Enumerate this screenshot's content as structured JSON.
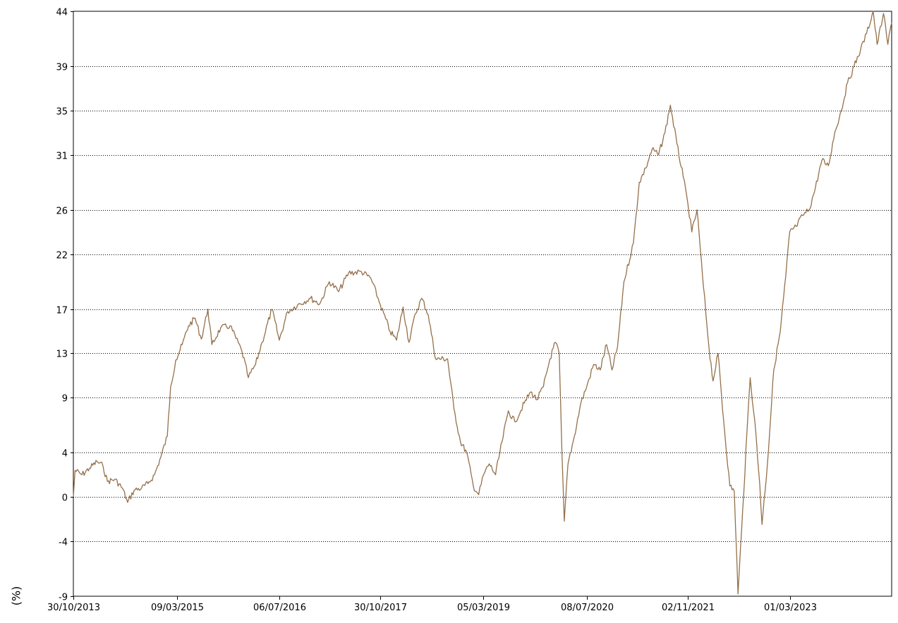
{
  "chart_data": {
    "type": "line",
    "title": "",
    "xlabel": "",
    "ylabel": "(%)",
    "grid": "horizontal dotted",
    "legend": "none",
    "line_color": "#94704a",
    "y_ticks": [
      "44",
      "39",
      "35",
      "31",
      "26",
      "22",
      "17",
      "13",
      "9",
      "4",
      "0",
      "-4",
      "-9"
    ],
    "x_ticks": [
      "30/10/2013",
      "09/03/2015",
      "06/07/2016",
      "30/10/2017",
      "05/03/2019",
      "08/07/2020",
      "02/11/2021",
      "01/03/2023"
    ],
    "ylim": [
      -9,
      44
    ],
    "xlim": [
      "2013-10-30",
      "2024-06-28"
    ],
    "series": [
      {
        "values": [
          [
            "2013-10-30",
            0.0
          ],
          [
            "2013-11-07",
            2.4
          ],
          [
            "2013-12-10",
            2.0
          ],
          [
            "2014-01-15",
            2.6
          ],
          [
            "2014-02-20",
            3.2
          ],
          [
            "2014-03-20",
            2.8
          ],
          [
            "2014-04-10",
            1.4
          ],
          [
            "2014-05-15",
            1.6
          ],
          [
            "2014-06-20",
            0.8
          ],
          [
            "2014-07-15",
            -0.5
          ],
          [
            "2014-08-15",
            0.6
          ],
          [
            "2014-09-20",
            0.8
          ],
          [
            "2014-10-20",
            1.2
          ],
          [
            "2014-11-20",
            2.0
          ],
          [
            "2014-12-20",
            3.6
          ],
          [
            "2015-01-20",
            5.5
          ],
          [
            "2015-02-05",
            10.0
          ],
          [
            "2015-03-01",
            12.4
          ],
          [
            "2015-04-01",
            13.8
          ],
          [
            "2015-05-01",
            15.5
          ],
          [
            "2015-06-01",
            16.2
          ],
          [
            "2015-07-01",
            14.3
          ],
          [
            "2015-08-01",
            17.0
          ],
          [
            "2015-08-20",
            13.8
          ],
          [
            "2015-10-01",
            15.3
          ],
          [
            "2015-11-15",
            15.5
          ],
          [
            "2016-01-10",
            13.2
          ],
          [
            "2016-02-10",
            10.8
          ],
          [
            "2016-03-15",
            12.0
          ],
          [
            "2016-04-15",
            14.0
          ],
          [
            "2016-06-01",
            17.0
          ],
          [
            "2016-07-06",
            14.2
          ],
          [
            "2016-08-15",
            16.8
          ],
          [
            "2016-10-01",
            17.4
          ],
          [
            "2016-12-01",
            18.0
          ],
          [
            "2017-01-15",
            17.5
          ],
          [
            "2017-03-01",
            19.5
          ],
          [
            "2017-04-15",
            18.6
          ],
          [
            "2017-06-01",
            20.3
          ],
          [
            "2017-08-01",
            20.4
          ],
          [
            "2017-09-15",
            19.8
          ],
          [
            "2017-10-30",
            17.4
          ],
          [
            "2017-12-15",
            15.0
          ],
          [
            "2018-01-15",
            14.2
          ],
          [
            "2018-02-15",
            17.2
          ],
          [
            "2018-03-15",
            14.0
          ],
          [
            "2018-04-15",
            16.6
          ],
          [
            "2018-05-15",
            18.0
          ],
          [
            "2018-06-15",
            16.5
          ],
          [
            "2018-07-20",
            12.5
          ],
          [
            "2018-09-15",
            12.5
          ],
          [
            "2018-10-15",
            8.0
          ],
          [
            "2018-11-15",
            5.0
          ],
          [
            "2018-12-15",
            4.0
          ],
          [
            "2019-01-15",
            1.0
          ],
          [
            "2019-02-10",
            0.2
          ],
          [
            "2019-03-05",
            2.0
          ],
          [
            "2019-04-01",
            3.0
          ],
          [
            "2019-05-01",
            2.0
          ],
          [
            "2019-06-01",
            5.0
          ],
          [
            "2019-07-01",
            7.8
          ],
          [
            "2019-08-01",
            6.8
          ],
          [
            "2019-09-15",
            8.5
          ],
          [
            "2019-10-15",
            9.5
          ],
          [
            "2019-11-15",
            8.8
          ],
          [
            "2019-12-15",
            10.0
          ],
          [
            "2020-01-15",
            12.5
          ],
          [
            "2020-02-10",
            14.0
          ],
          [
            "2020-02-28",
            13.0
          ],
          [
            "2020-03-12",
            4.0
          ],
          [
            "2020-03-23",
            -2.2
          ],
          [
            "2020-04-10",
            3.0
          ],
          [
            "2020-05-10",
            5.5
          ],
          [
            "2020-06-10",
            8.5
          ],
          [
            "2020-07-08",
            10.0
          ],
          [
            "2020-08-10",
            12.0
          ],
          [
            "2020-09-10",
            11.5
          ],
          [
            "2020-10-10",
            13.8
          ],
          [
            "2020-11-05",
            11.5
          ],
          [
            "2020-12-01",
            13.5
          ],
          [
            "2021-01-01",
            19.5
          ],
          [
            "2021-02-15",
            23.0
          ],
          [
            "2021-03-15",
            28.5
          ],
          [
            "2021-04-15",
            29.8
          ],
          [
            "2021-05-15",
            31.5
          ],
          [
            "2021-06-15",
            31.0
          ],
          [
            "2021-07-15",
            33.0
          ],
          [
            "2021-08-10",
            35.5
          ],
          [
            "2021-09-10",
            32.0
          ],
          [
            "2021-10-10",
            29.0
          ],
          [
            "2021-11-02",
            26.5
          ],
          [
            "2021-11-20",
            24.0
          ],
          [
            "2021-12-15",
            26.0
          ],
          [
            "2022-01-10",
            20.0
          ],
          [
            "2022-02-10",
            13.5
          ],
          [
            "2022-03-01",
            10.5
          ],
          [
            "2022-03-25",
            13.0
          ],
          [
            "2022-04-20",
            7.0
          ],
          [
            "2022-05-20",
            1.0
          ],
          [
            "2022-06-10",
            0.5
          ],
          [
            "2022-06-28",
            -8.8
          ],
          [
            "2022-07-15",
            -3.0
          ],
          [
            "2022-08-10",
            6.0
          ],
          [
            "2022-08-25",
            10.8
          ],
          [
            "2022-09-15",
            7.0
          ],
          [
            "2022-10-10",
            1.0
          ],
          [
            "2022-10-20",
            -2.5
          ],
          [
            "2022-11-15",
            3.0
          ],
          [
            "2022-12-15",
            11.5
          ],
          [
            "2023-01-15",
            15.0
          ],
          [
            "2023-02-10",
            20.0
          ],
          [
            "2023-03-01",
            24.0
          ],
          [
            "2023-04-01",
            24.5
          ],
          [
            "2023-05-01",
            25.5
          ],
          [
            "2023-06-01",
            26.0
          ],
          [
            "2023-07-01",
            28.0
          ],
          [
            "2023-08-01",
            30.5
          ],
          [
            "2023-09-01",
            30.0
          ],
          [
            "2023-10-01",
            33.0
          ],
          [
            "2023-11-01",
            35.0
          ],
          [
            "2023-12-01",
            37.5
          ],
          [
            "2024-01-01",
            39.0
          ],
          [
            "2024-02-01",
            40.5
          ],
          [
            "2024-03-01",
            42.0
          ],
          [
            "2024-04-01",
            44.0
          ],
          [
            "2024-04-20",
            41.0
          ],
          [
            "2024-05-20",
            43.8
          ],
          [
            "2024-06-10",
            41.0
          ],
          [
            "2024-06-28",
            43.0
          ]
        ]
      }
    ]
  }
}
